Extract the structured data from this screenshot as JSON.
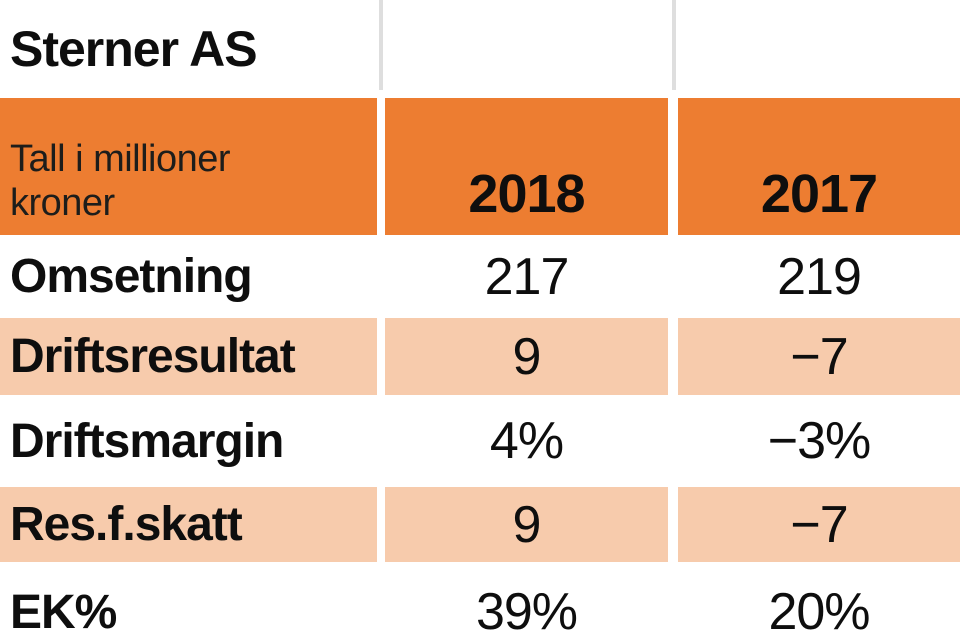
{
  "title": "Sterner AS",
  "table": {
    "unit_label": "Tall i millioner kroner",
    "col_headers": [
      "2018",
      "2017"
    ],
    "rows": [
      {
        "label": "Omsetning",
        "values": [
          "217",
          "219"
        ]
      },
      {
        "label": "Driftsresultat",
        "values": [
          "9",
          "−7"
        ]
      },
      {
        "label": "Driftsmargin",
        "values": [
          "4%",
          "−3%"
        ]
      },
      {
        "label": "Res.f.skatt",
        "values": [
          "9",
          "−7"
        ]
      },
      {
        "label": "EK%",
        "values": [
          "39%",
          "20%"
        ]
      }
    ]
  },
  "colors": {
    "header_orange": "#ED7D31",
    "row_shade_peach": "#F7CBAC",
    "divider_gray": "#DEDEDE",
    "text_black": "#0E0E0E"
  },
  "chart_data": {
    "type": "table",
    "title": "Sterner AS",
    "unit": "Tall i millioner kroner",
    "columns": [
      "2018",
      "2017"
    ],
    "rows": [
      {
        "label": "Omsetning",
        "2018": 217,
        "2017": 219
      },
      {
        "label": "Driftsresultat",
        "2018": 9,
        "2017": -7
      },
      {
        "label": "Driftsmargin",
        "2018": "4%",
        "2017": "-3%"
      },
      {
        "label": "Res.f.skatt",
        "2018": 9,
        "2017": -7
      },
      {
        "label": "EK%",
        "2018": "39%",
        "2017": "20%"
      }
    ]
  }
}
